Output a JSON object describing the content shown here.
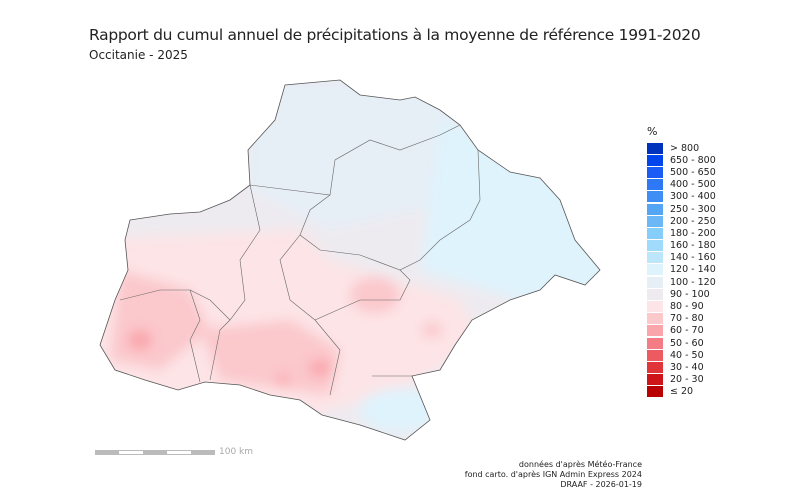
{
  "title": "Rapport du cumul annuel de précipitations à la moyenne de référence 1991-2020",
  "subtitle": "Occitanie - 2025",
  "legend": {
    "unit": "%",
    "items": [
      {
        "label": "> 800",
        "color": "#0033bb"
      },
      {
        "label": "650 - 800",
        "color": "#0044ee"
      },
      {
        "label": "500 - 650",
        "color": "#1a5cf5"
      },
      {
        "label": "400 - 500",
        "color": "#2e77f5"
      },
      {
        "label": "300 - 400",
        "color": "#3f8ef5"
      },
      {
        "label": "250 - 300",
        "color": "#55a5f5"
      },
      {
        "label": "200 - 250",
        "color": "#6cb8f7"
      },
      {
        "label": "180 - 200",
        "color": "#86cdfa"
      },
      {
        "label": "160 - 180",
        "color": "#a1dbfb"
      },
      {
        "label": "140 - 160",
        "color": "#bde6fb"
      },
      {
        "label": "120 - 140",
        "color": "#dff3fc"
      },
      {
        "label": "100 - 120",
        "color": "#e6eef6"
      },
      {
        "label": "90 - 100",
        "color": "#eeebf0"
      },
      {
        "label": "80 - 90",
        "color": "#fde4e6"
      },
      {
        "label": "70 - 80",
        "color": "#fbc8cc"
      },
      {
        "label": "60 - 70",
        "color": "#f9a5ab"
      },
      {
        "label": "50 - 60",
        "color": "#f47c84"
      },
      {
        "label": "40 - 50",
        "color": "#ec5a62"
      },
      {
        "label": "30 - 40",
        "color": "#e03438"
      },
      {
        "label": "20 - 30",
        "color": "#cc1419"
      },
      {
        "label": "≤ 20",
        "color": "#b80000"
      }
    ]
  },
  "scale": {
    "label": "100 km"
  },
  "credits": [
    "données d'après Météo-France",
    "fond carto. d'après IGN Admin Express 2024",
    "DRAAF - 2026-01-19"
  ]
}
